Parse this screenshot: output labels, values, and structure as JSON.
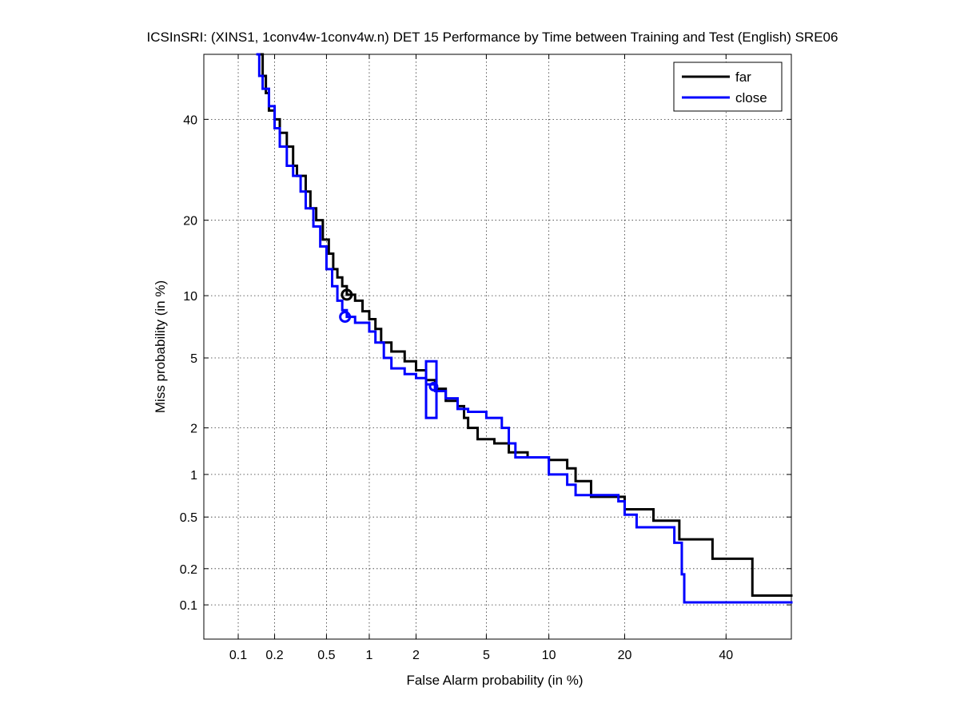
{
  "chart_data": {
    "type": "line",
    "title": "ICSInSRI: (XINS1, 1conv4w-1conv4w.n) DET 15 Performance by Time between Training and Test (English) SRE06",
    "xlabel": "False Alarm probability (in %)",
    "ylabel": "Miss probability (in %)",
    "xscale": "probit",
    "yscale": "probit",
    "xlim": [
      0.05,
      55
    ],
    "ylim": [
      0.05,
      55
    ],
    "xticks": [
      {
        "value": 0.1,
        "label": "0.1"
      },
      {
        "value": 0.2,
        "label": "0.2"
      },
      {
        "value": 0.5,
        "label": "0.5"
      },
      {
        "value": 1,
        "label": "1"
      },
      {
        "value": 2,
        "label": "2"
      },
      {
        "value": 5,
        "label": "5"
      },
      {
        "value": 10,
        "label": "10"
      },
      {
        "value": 20,
        "label": "20"
      },
      {
        "value": 40,
        "label": "40"
      }
    ],
    "yticks": [
      {
        "value": 0.1,
        "label": "0.1"
      },
      {
        "value": 0.2,
        "label": "0.2"
      },
      {
        "value": 0.5,
        "label": "0.5"
      },
      {
        "value": 1,
        "label": "1"
      },
      {
        "value": 2,
        "label": "2"
      },
      {
        "value": 5,
        "label": "5"
      },
      {
        "value": 10,
        "label": "10"
      },
      {
        "value": 20,
        "label": "20"
      },
      {
        "value": 40,
        "label": "40"
      }
    ],
    "grid": true,
    "legend_position": "top-right",
    "series": [
      {
        "name": "far",
        "color": "#000000",
        "points": [
          [
            0.155,
            55
          ],
          [
            0.16,
            50
          ],
          [
            0.17,
            46
          ],
          [
            0.18,
            42
          ],
          [
            0.2,
            40
          ],
          [
            0.22,
            37
          ],
          [
            0.25,
            34
          ],
          [
            0.28,
            30
          ],
          [
            0.3,
            28
          ],
          [
            0.35,
            25
          ],
          [
            0.38,
            22
          ],
          [
            0.42,
            20
          ],
          [
            0.47,
            17
          ],
          [
            0.52,
            15
          ],
          [
            0.56,
            13
          ],
          [
            0.6,
            12
          ],
          [
            0.65,
            11
          ],
          [
            0.7,
            10.1
          ],
          [
            0.8,
            9.5
          ],
          [
            0.9,
            8.5
          ],
          [
            1.0,
            7.8
          ],
          [
            1.1,
            7.0
          ],
          [
            1.2,
            6.0
          ],
          [
            1.4,
            5.4
          ],
          [
            1.7,
            4.8
          ],
          [
            2.0,
            4.3
          ],
          [
            2.3,
            3.8
          ],
          [
            2.6,
            3.4
          ],
          [
            3.0,
            2.9
          ],
          [
            3.5,
            2.7
          ],
          [
            3.8,
            2.3
          ],
          [
            4.0,
            2.0
          ],
          [
            4.5,
            1.7
          ],
          [
            5.5,
            1.6
          ],
          [
            6.5,
            1.4
          ],
          [
            8.0,
            1.3
          ],
          [
            10.0,
            1.25
          ],
          [
            12.0,
            1.1
          ],
          [
            13.0,
            0.9
          ],
          [
            15.0,
            0.7
          ],
          [
            18.0,
            0.7
          ],
          [
            20.0,
            0.57
          ],
          [
            25.0,
            0.47
          ],
          [
            30.0,
            0.34
          ],
          [
            37.0,
            0.24
          ],
          [
            44.0,
            0.24
          ],
          [
            46.0,
            0.12
          ],
          [
            55.0,
            0.12
          ]
        ],
        "operating_point": [
          0.7,
          10.1
        ]
      },
      {
        "name": "close",
        "color": "#0000ff",
        "points": [
          [
            0.145,
            55
          ],
          [
            0.15,
            50
          ],
          [
            0.16,
            47
          ],
          [
            0.18,
            43
          ],
          [
            0.2,
            38
          ],
          [
            0.22,
            34
          ],
          [
            0.25,
            30
          ],
          [
            0.28,
            28
          ],
          [
            0.32,
            25
          ],
          [
            0.35,
            22
          ],
          [
            0.4,
            19
          ],
          [
            0.45,
            16
          ],
          [
            0.5,
            13
          ],
          [
            0.55,
            11
          ],
          [
            0.6,
            9.5
          ],
          [
            0.65,
            8.6
          ],
          [
            0.7,
            8.0
          ],
          [
            0.8,
            7.5
          ],
          [
            1.0,
            6.8
          ],
          [
            1.1,
            6.0
          ],
          [
            1.25,
            5.0
          ],
          [
            1.4,
            4.4
          ],
          [
            1.7,
            4.1
          ],
          [
            2.0,
            3.9
          ],
          [
            2.3,
            3.6
          ],
          [
            2.6,
            3.3
          ],
          [
            3.0,
            3.0
          ],
          [
            3.5,
            2.6
          ],
          [
            4.0,
            2.5
          ],
          [
            5.0,
            2.3
          ],
          [
            6.0,
            2.0
          ],
          [
            6.5,
            1.6
          ],
          [
            7.0,
            1.3
          ],
          [
            9.0,
            1.3
          ],
          [
            10.0,
            1.0
          ],
          [
            12.0,
            0.85
          ],
          [
            13.0,
            0.72
          ],
          [
            18.0,
            0.72
          ],
          [
            19.0,
            0.65
          ],
          [
            20.0,
            0.52
          ],
          [
            22.0,
            0.42
          ],
          [
            28.0,
            0.42
          ],
          [
            29.0,
            0.32
          ],
          [
            30.5,
            0.18
          ],
          [
            31.0,
            0.105
          ],
          [
            55.0,
            0.105
          ]
        ],
        "operating_point": [
          0.68,
          8.0
        ],
        "confidence_box": {
          "x": [
            2.3,
            2.65
          ],
          "y": [
            2.3,
            4.8
          ]
        },
        "confidence_center": [
          2.55,
          3.5
        ]
      }
    ]
  }
}
